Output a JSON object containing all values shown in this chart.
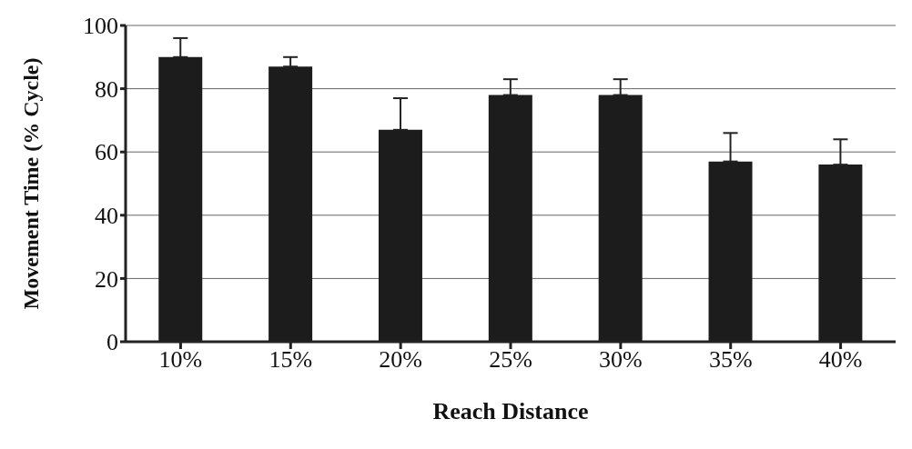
{
  "chart_data": {
    "type": "bar",
    "xlabel": "Reach Distance",
    "ylabel": "Movement Time (% Cycle)",
    "categories": [
      "10%",
      "15%",
      "20%",
      "25%",
      "30%",
      "35%",
      "40%"
    ],
    "values": [
      90,
      87,
      67,
      78,
      78,
      57,
      56
    ],
    "errors": [
      [
        90,
        96
      ],
      [
        87,
        90
      ],
      [
        67,
        77
      ],
      [
        78,
        83
      ],
      [
        78,
        83
      ],
      [
        57,
        66
      ],
      [
        56,
        64
      ]
    ],
    "color": "#1c1c1c",
    "ylim": [
      0,
      100
    ],
    "yticks": [
      0,
      20,
      40,
      60,
      80,
      100
    ],
    "grid": "y"
  }
}
